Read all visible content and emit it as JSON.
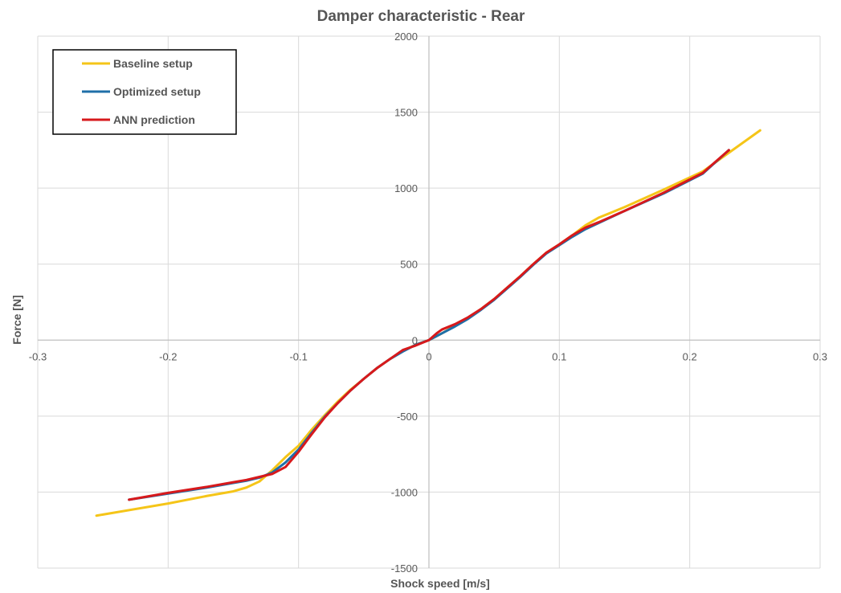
{
  "chart_data": {
    "type": "line",
    "title": "Damper characteristic - Rear",
    "xlabel": "Shock speed [m/s]",
    "ylabel": "Force [N]",
    "xlim": [
      -0.3,
      0.3
    ],
    "ylim": [
      -1500,
      2000
    ],
    "x_ticks": [
      -0.3,
      -0.2,
      -0.1,
      0,
      0.1,
      0.2,
      0.3
    ],
    "x_tick_labels": [
      "-0.3",
      "-0.2",
      "-0.1",
      "0",
      "0.1",
      "0.2",
      "0.3"
    ],
    "y_ticks": [
      -1500,
      -1000,
      -500,
      0,
      500,
      1000,
      1500,
      2000
    ],
    "y_tick_labels": [
      "-1500",
      "-1000",
      "-500",
      "0",
      "500",
      "1000",
      "1500",
      "2000"
    ],
    "grid": true,
    "legend": "top-left",
    "series": [
      {
        "name": "Baseline setup",
        "color": "#F5C518",
        "x": [
          -0.255,
          -0.2,
          -0.17,
          -0.15,
          -0.14,
          -0.13,
          -0.12,
          -0.11,
          -0.1,
          -0.09,
          -0.08,
          -0.07,
          -0.06,
          -0.05,
          -0.04,
          -0.03,
          -0.02,
          -0.01,
          0,
          0.01,
          0.02,
          0.03,
          0.04,
          0.05,
          0.06,
          0.07,
          0.08,
          0.09,
          0.1,
          0.11,
          0.12,
          0.13,
          0.15,
          0.18,
          0.21,
          0.254
        ],
        "y": [
          -1155,
          -1075,
          -1025,
          -995,
          -970,
          -930,
          -855,
          -770,
          -695,
          -590,
          -495,
          -405,
          -325,
          -255,
          -185,
          -125,
          -70,
          -30,
          0,
          45,
          95,
          145,
          205,
          270,
          345,
          420,
          500,
          575,
          630,
          690,
          755,
          805,
          875,
          990,
          1110,
          1380
        ]
      },
      {
        "name": "Optimized setup",
        "color": "#1F6FA8",
        "x": [
          -0.23,
          -0.2,
          -0.17,
          -0.15,
          -0.14,
          -0.13,
          -0.12,
          -0.11,
          -0.1,
          -0.09,
          -0.08,
          -0.07,
          -0.06,
          -0.05,
          -0.04,
          -0.03,
          -0.02,
          -0.01,
          0,
          0.01,
          0.02,
          0.03,
          0.04,
          0.05,
          0.06,
          0.07,
          0.08,
          0.09,
          0.1,
          0.11,
          0.12,
          0.13,
          0.15,
          0.18,
          0.21,
          0.23
        ],
        "y": [
          -1050,
          -1010,
          -970,
          -940,
          -925,
          -905,
          -870,
          -805,
          -720,
          -610,
          -505,
          -415,
          -330,
          -255,
          -185,
          -125,
          -75,
          -30,
          0,
          45,
          90,
          140,
          200,
          265,
          340,
          415,
          495,
          570,
          625,
          680,
          730,
          770,
          850,
          965,
          1095,
          1250
        ]
      },
      {
        "name": "ANN prediction",
        "color": "#D7191C",
        "x": [
          -0.23,
          -0.2,
          -0.17,
          -0.15,
          -0.14,
          -0.13,
          -0.12,
          -0.11,
          -0.1,
          -0.09,
          -0.08,
          -0.07,
          -0.06,
          -0.05,
          -0.04,
          -0.03,
          -0.02,
          -0.01,
          0,
          0.006,
          0.01,
          0.02,
          0.03,
          0.04,
          0.05,
          0.06,
          0.07,
          0.08,
          0.09,
          0.1,
          0.11,
          0.12,
          0.13,
          0.15,
          0.18,
          0.21,
          0.23
        ],
        "y": [
          -1050,
          -1005,
          -965,
          -935,
          -920,
          -900,
          -880,
          -835,
          -735,
          -620,
          -510,
          -415,
          -330,
          -255,
          -185,
          -125,
          -65,
          -35,
          0,
          45,
          70,
          105,
          150,
          205,
          270,
          345,
          420,
          500,
          575,
          630,
          690,
          740,
          775,
          850,
          970,
          1100,
          1250
        ]
      }
    ]
  }
}
